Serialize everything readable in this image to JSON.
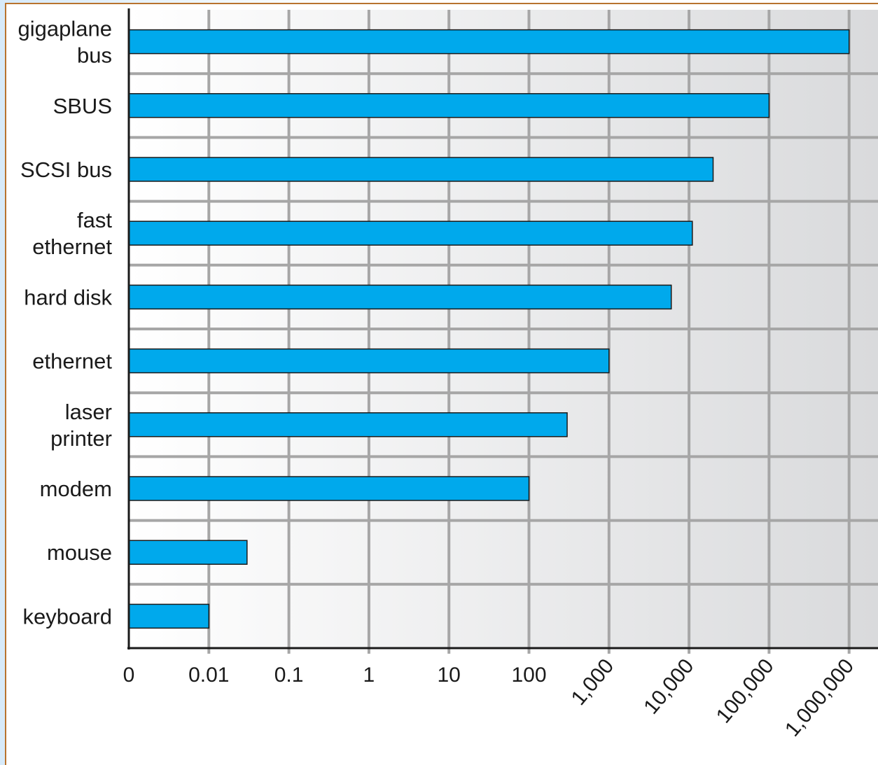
{
  "colors": {
    "bar_fill": "#00a9ec",
    "bar_stroke": "#1a1a1a",
    "grid": "#a6a6a6",
    "axis": "#1a1a1a",
    "frame": "#b8732e",
    "plot_bg_start": "#ffffff",
    "plot_bg_end": "#d9dadc"
  },
  "chart_data": {
    "type": "bar",
    "orientation": "horizontal",
    "title": "",
    "xlabel": "",
    "ylabel": "",
    "x_scale": "log",
    "grid": true,
    "legend": "none",
    "x_ticks": [
      {
        "label": "0",
        "value": 0.001,
        "rotated": false
      },
      {
        "label": "0.01",
        "value": 0.01,
        "rotated": false
      },
      {
        "label": "0.1",
        "value": 0.1,
        "rotated": false
      },
      {
        "label": "1",
        "value": 1,
        "rotated": false
      },
      {
        "label": "10",
        "value": 10,
        "rotated": false
      },
      {
        "label": "100",
        "value": 100,
        "rotated": false
      },
      {
        "label": "1,000",
        "value": 1000,
        "rotated": true
      },
      {
        "label": "10,000",
        "value": 10000,
        "rotated": true
      },
      {
        "label": "100,000",
        "value": 100000,
        "rotated": true
      },
      {
        "label": "1,000,000",
        "value": 1000000,
        "rotated": true
      }
    ],
    "categories": [
      [
        "gigaplane",
        "bus"
      ],
      [
        "SBUS"
      ],
      [
        "SCSI bus"
      ],
      [
        "fast",
        "ethernet"
      ],
      [
        "hard disk"
      ],
      [
        "ethernet"
      ],
      [
        "laser",
        "printer"
      ],
      [
        "modem"
      ],
      [
        "mouse"
      ],
      [
        "keyboard"
      ]
    ],
    "values": [
      1000000,
      100000,
      20000,
      11000,
      6000,
      1000,
      300,
      100,
      0.03,
      0.01
    ]
  }
}
